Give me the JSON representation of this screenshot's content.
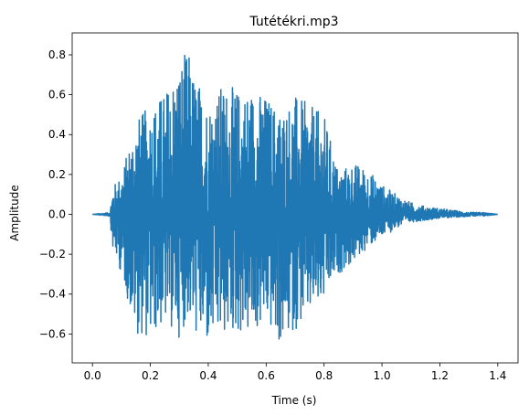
{
  "chart_data": {
    "type": "line",
    "title": "Tutétékri.mp3",
    "xlabel": "Time (s)",
    "ylabel": "Amplitude",
    "xlim": [
      -0.07,
      1.47
    ],
    "ylim": [
      -0.745,
      0.91
    ],
    "xticks": [
      0.0,
      0.2,
      0.4,
      0.6,
      0.8,
      1.0,
      1.2,
      1.4
    ],
    "xtick_labels": [
      "0.0",
      "0.2",
      "0.4",
      "0.6",
      "0.8",
      "1.0",
      "1.2",
      "1.4"
    ],
    "yticks": [
      -0.6,
      -0.4,
      -0.2,
      0.0,
      0.2,
      0.4,
      0.6,
      0.8
    ],
    "ytick_labels": [
      "−0.6",
      "−0.4",
      "−0.2",
      "0.0",
      "0.2",
      "0.4",
      "0.6",
      "0.8"
    ],
    "grid": false,
    "series": [
      {
        "color": "#1f77b4",
        "envelope": {
          "t": [
            0.0,
            0.06,
            0.07,
            0.1,
            0.15,
            0.2,
            0.25,
            0.3,
            0.33,
            0.35,
            0.4,
            0.45,
            0.5,
            0.55,
            0.6,
            0.65,
            0.7,
            0.75,
            0.8,
            0.85,
            0.9,
            0.95,
            1.0,
            1.05,
            1.1,
            1.15,
            1.2,
            1.25,
            1.3,
            1.35,
            1.4
          ],
          "max": [
            0.0,
            0.01,
            0.14,
            0.2,
            0.48,
            0.55,
            0.62,
            0.78,
            0.83,
            0.72,
            0.57,
            0.66,
            0.63,
            0.64,
            0.6,
            0.53,
            0.6,
            0.55,
            0.5,
            0.22,
            0.26,
            0.23,
            0.15,
            0.1,
            0.06,
            0.04,
            0.03,
            0.02,
            0.01,
            0.01,
            0.0
          ],
          "min": [
            0.0,
            -0.01,
            -0.18,
            -0.3,
            -0.6,
            -0.63,
            -0.55,
            -0.62,
            -0.52,
            -0.6,
            -0.68,
            -0.62,
            -0.6,
            -0.62,
            -0.55,
            -0.67,
            -0.58,
            -0.52,
            -0.45,
            -0.3,
            -0.25,
            -0.17,
            -0.12,
            -0.07,
            -0.04,
            -0.03,
            -0.02,
            -0.015,
            -0.01,
            -0.01,
            0.0
          ]
        }
      }
    ]
  }
}
